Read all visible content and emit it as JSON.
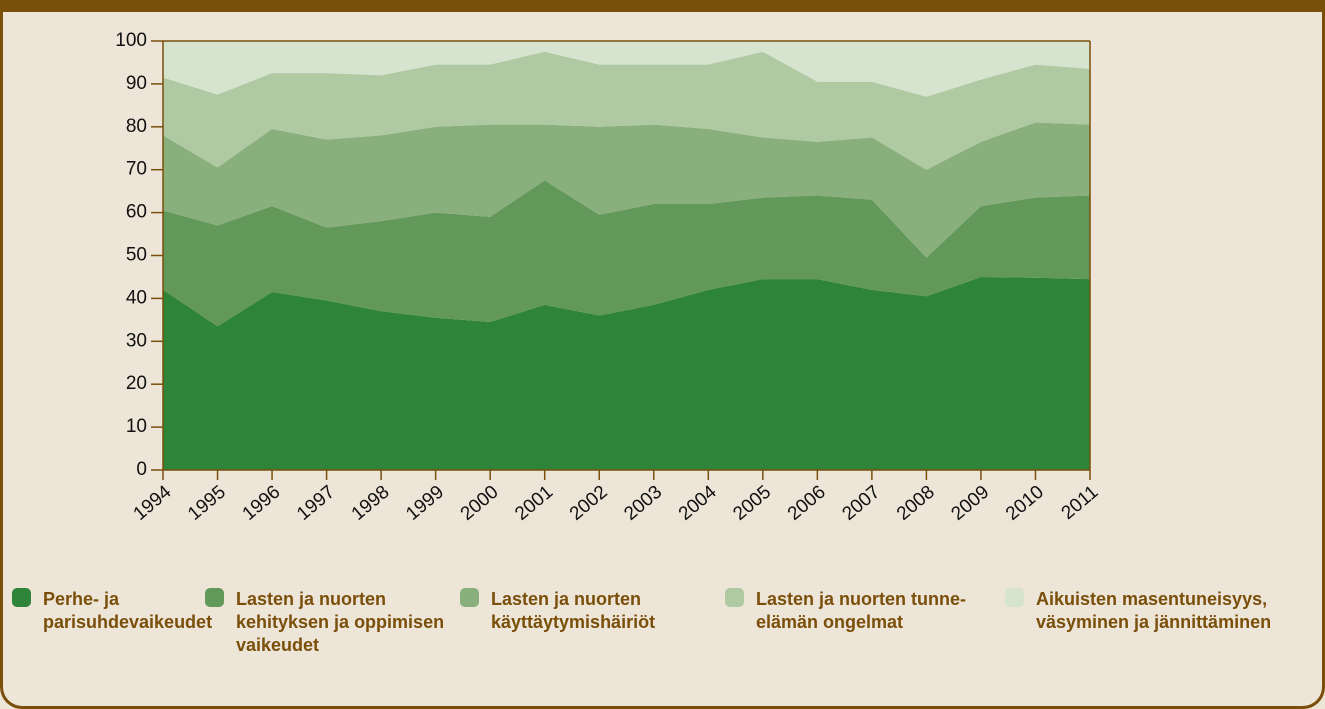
{
  "chart_data": {
    "type": "stacked_area",
    "categories": [
      "1994",
      "1995",
      "1996",
      "1997",
      "1998",
      "1999",
      "2000",
      "2001",
      "2002",
      "2003",
      "2004",
      "2005",
      "2006",
      "2007",
      "2008",
      "2009",
      "2010",
      "2011"
    ],
    "ylim": [
      0,
      100
    ],
    "yticks": [
      0,
      10,
      20,
      30,
      40,
      50,
      60,
      70,
      80,
      90,
      100
    ],
    "series": [
      {
        "name": "Perhe- ja parisuhdevaikeudet",
        "color": "#2e8439",
        "values": [
          42,
          33.5,
          41.5,
          39.5,
          37,
          35.5,
          34.5,
          38.5,
          36,
          38.5,
          42,
          44.5,
          44.5,
          42,
          40.5,
          45,
          44.8,
          44.5
        ]
      },
      {
        "name": "Lasten ja nuorten kehityksen ja oppimisen vaikeudet",
        "color": "#62985a",
        "values": [
          18.5,
          23.5,
          20,
          17,
          21,
          24.5,
          24.5,
          29,
          23.5,
          23.5,
          20,
          19,
          19.5,
          21,
          9,
          16.5,
          18.7,
          19.5
        ]
      },
      {
        "name": "Lasten ja nuorten käyttäytymishäiriöt",
        "color": "#88af7c",
        "values": [
          17.5,
          13.5,
          18,
          20.5,
          20,
          20,
          21.5,
          13,
          20.5,
          18.5,
          17.5,
          14,
          12.5,
          14.5,
          20.5,
          15,
          17.5,
          16.5
        ]
      },
      {
        "name": "Lasten ja nuorten tunne-elämän ongelmat",
        "color": "#afc9a2",
        "values": [
          13.5,
          17,
          13,
          15.5,
          14,
          14.5,
          14,
          17,
          14.5,
          14,
          15,
          20,
          14,
          13,
          17,
          14.5,
          13.5,
          13
        ]
      },
      {
        "name": "Aikuisten masentuneisyys, väsyminen ja jännittäminen",
        "color": "#d5e3cf",
        "values": [
          8.5,
          12.5,
          7.5,
          7.5,
          8,
          5.5,
          5.5,
          2.5,
          5.5,
          5.5,
          5.5,
          2.5,
          9.5,
          9.5,
          13,
          9,
          5.5,
          6.5
        ]
      }
    ]
  }
}
